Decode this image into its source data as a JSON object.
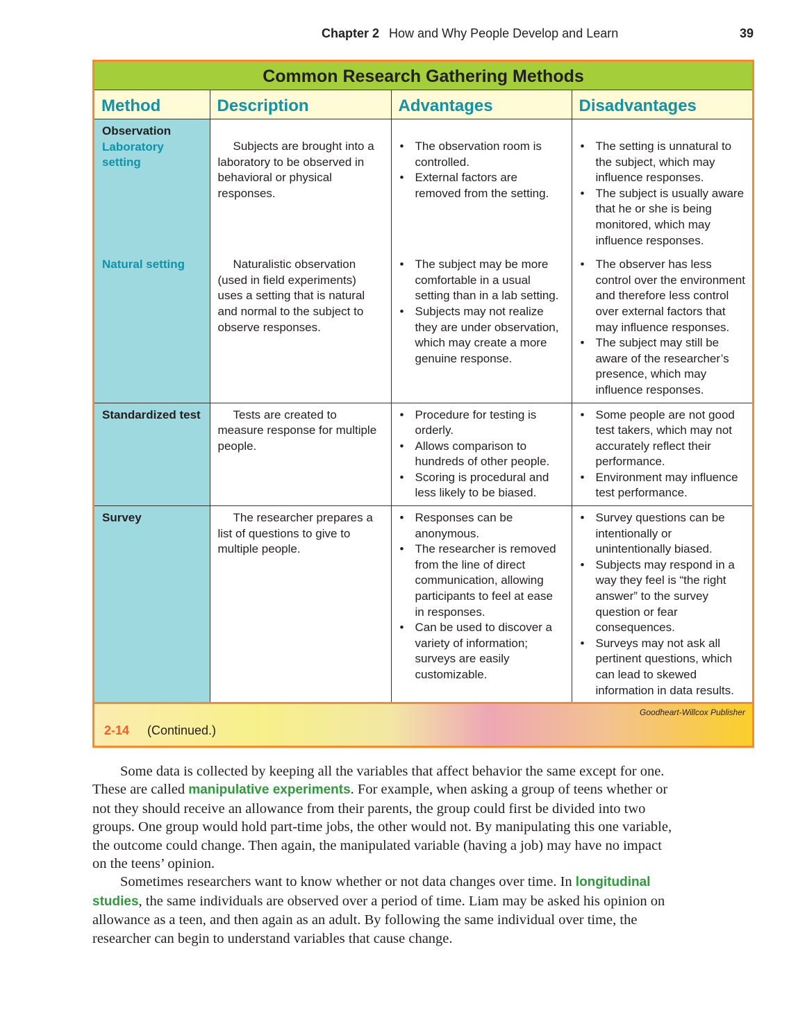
{
  "running_head": {
    "chapter": "Chapter 2",
    "title": "How and Why People Develop and Learn",
    "page": "39"
  },
  "figure": {
    "title": "Common Research Gathering Methods",
    "headers": [
      "Method",
      "Description",
      "Advantages",
      "Disadvantages"
    ],
    "rows": [
      {
        "method": "Observation",
        "sub": "Laboratory setting",
        "desc": "Subjects are brought into a laboratory to be observed in behavioral or physical responses.",
        "adv": [
          "The observation room is controlled.",
          "External factors are removed from the setting."
        ],
        "dis": [
          "The setting is unnatural to the subject, which may influence responses.",
          "The subject is usually aware that he or she is being monitored, which may influence responses."
        ]
      },
      {
        "method": "",
        "sub": "Natural setting",
        "desc": "Naturalistic observation (used in field experiments) uses a setting that is natural and normal to the subject to observe responses.",
        "adv": [
          "The subject may be more comfortable in a usual setting than in a lab setting.",
          "Subjects may not realize they are under observation, which may create a more genuine response."
        ],
        "dis": [
          "The observer has less control over the environment and therefore less control over external factors that may influence responses.",
          "The subject may still be aware of the researcher’s presence, which may influence responses."
        ]
      },
      {
        "method": "Standardized test",
        "sub": "",
        "desc": "Tests are created to measure response for multiple people.",
        "adv": [
          "Procedure for testing is orderly.",
          "Allows comparison to hundreds of other people.",
          "Scoring is procedural and less likely to be biased."
        ],
        "dis": [
          "Some people are not good test takers, which may not accurately reflect their performance.",
          "Environment may influence test performance."
        ]
      },
      {
        "method": "Survey",
        "sub": "",
        "desc": "The researcher prepares a list of questions to give to multiple people.",
        "adv": [
          "Responses can be anonymous.",
          "The researcher is removed from the line of direct communication, allowing participants to feel at ease in responses.",
          "Can be used to discover a variety of information; surveys are easily customizable."
        ],
        "dis": [
          "Survey questions can be intentionally or unintentionally biased.",
          "Subjects may respond in a way they feel is “the right answer” to the survey question or fear consequences.",
          "Surveys may not ask all pertinent questions, which can lead to skewed information in data results."
        ]
      }
    ],
    "publisher": "Goodheart-Willcox Publisher",
    "number": "2-14",
    "caption": "(Continued.)"
  },
  "body": [
    [
      "Some data is collected by keeping all the variables that affect behavior the same except for one. These are called ",
      {
        "kw": "manipulative experiments"
      },
      ". For example, when asking a group of teens whether or not they should receive an allowance from their parents, the group could first be divided into two groups. One group would hold part-time jobs, the other would not. By manipulating this one variable, the outcome could change. Then again, the manipulated variable (having a job) may have no impact on the teens’ opinion."
    ],
    [
      "Sometimes researchers want to know whether or not data changes over time. In ",
      {
        "kw": "longitudinal studies"
      },
      ", the same individuals are observed over a period of time. Liam may be asked his opinion on allowance as a teen, and then again as an adult. By following the same individual over time, the researcher can begin to understand variables that cause change."
    ]
  ],
  "colors": {
    "frame": "#f58a2e",
    "title_bar": "#a4cf3a",
    "header_bg": "#fffbd6",
    "header_text": "#0e93a8",
    "method_bg": "#9fd9e0",
    "figure_number": "#ef5f2a",
    "keyword": "#2e9a3c"
  }
}
